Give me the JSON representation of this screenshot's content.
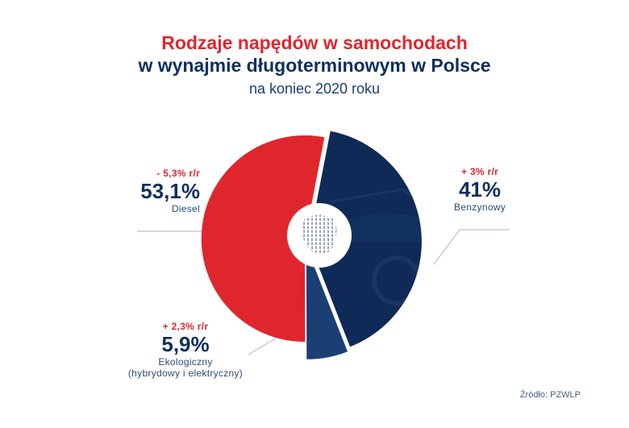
{
  "title": {
    "line1": "Rodzaje napędów w samochodach",
    "line2": "w wynajmie długoterminowym w Polsce",
    "line3": "na koniec 2020 roku"
  },
  "chart_data": {
    "type": "pie",
    "series": [
      {
        "name": "Diesel",
        "value": 53.1,
        "value_label": "53,1%",
        "change": "- 5,3% r/r",
        "color": "#e0262d",
        "sub": ""
      },
      {
        "name": "Benzynowy",
        "value": 41,
        "value_label": "41%",
        "change": "+ 3% r/r",
        "color": "#0f2a56",
        "sub": ""
      },
      {
        "name": "Ekologiczny",
        "value": 5.9,
        "value_label": "5,9%",
        "change": "+ 2,3% r/r",
        "color": "#1b3f74",
        "sub": "(hybrydowy i elektryczny)"
      }
    ]
  },
  "source": "Źródło: PZWLP",
  "colors": {
    "red": "#e0262d",
    "navy": "#0f2f5f",
    "line": "#b9c2d2"
  },
  "icons": {
    "center": "poland-map-icon"
  }
}
